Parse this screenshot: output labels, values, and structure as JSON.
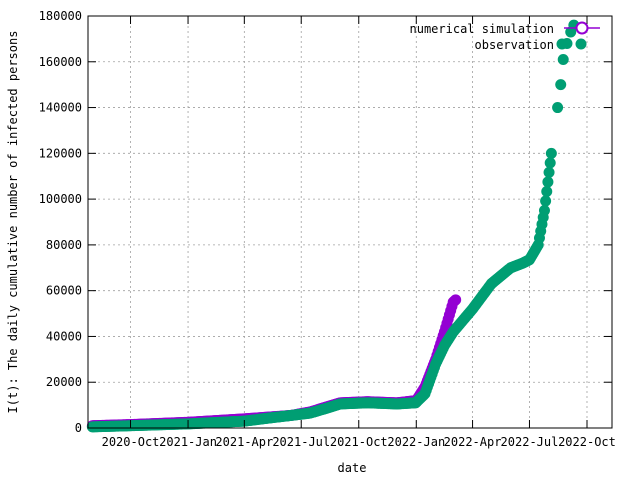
{
  "chart_data": {
    "type": "scatter",
    "title": "",
    "xlabel": "date",
    "ylabel": "I(t): The daily cumulative number of infected persons",
    "xlim": [
      "2020-07-25",
      "2022-11-10"
    ],
    "ylim": [
      0,
      180000
    ],
    "x_ticks": [
      "2020-10-01",
      "2021-01-01",
      "2021-04-01",
      "2021-07-01",
      "2021-10-01",
      "2022-01-01",
      "2022-04-01",
      "2022-07-01",
      "2022-10-01"
    ],
    "x_tick_labels": [
      "2020-Oct",
      "2021-Jan",
      "2021-Apr",
      "2021-Jul",
      "2021-Oct",
      "2022-Jan",
      "2022-Apr",
      "2022-Jul",
      "2022-Oct"
    ],
    "y_ticks": [
      0,
      20000,
      40000,
      60000,
      80000,
      100000,
      120000,
      140000,
      160000,
      180000
    ],
    "y_tick_labels": [
      "0",
      "20000",
      "40000",
      "60000",
      "80000",
      "100000",
      "120000",
      "140000",
      "160000",
      "180000"
    ],
    "grid": true,
    "legend_position": "top-right",
    "series": [
      {
        "name": "numerical simulation",
        "color": "#9400d3",
        "marker": "open-circle-line",
        "points": [
          [
            "2020-08-01",
            1000
          ],
          [
            "2020-10-01",
            1500
          ],
          [
            "2021-01-01",
            2500
          ],
          [
            "2021-04-01",
            4000
          ],
          [
            "2021-06-15",
            5500
          ],
          [
            "2021-07-15",
            7000
          ],
          [
            "2021-09-01",
            11000
          ],
          [
            "2021-10-15",
            11500
          ],
          [
            "2021-12-01",
            11000
          ],
          [
            "2022-01-01",
            12000
          ],
          [
            "2022-01-15",
            18000
          ],
          [
            "2022-02-01",
            30000
          ],
          [
            "2022-02-15",
            42000
          ],
          [
            "2022-03-01",
            55000
          ],
          [
            "2022-03-05",
            56000
          ]
        ]
      },
      {
        "name": "observation",
        "color": "#009e73",
        "marker": "filled-circle",
        "points": [
          [
            "2020-08-01",
            500
          ],
          [
            "2020-10-01",
            1000
          ],
          [
            "2021-01-01",
            1800
          ],
          [
            "2021-04-01",
            3000
          ],
          [
            "2021-05-15",
            4500
          ],
          [
            "2021-06-15",
            5500
          ],
          [
            "2021-07-15",
            6500
          ],
          [
            "2021-08-15",
            9000
          ],
          [
            "2021-09-01",
            10500
          ],
          [
            "2021-10-15",
            11000
          ],
          [
            "2021-12-01",
            10500
          ],
          [
            "2021-12-31",
            11000
          ],
          [
            "2022-01-15",
            15000
          ],
          [
            "2022-02-01",
            28000
          ],
          [
            "2022-02-15",
            36000
          ],
          [
            "2022-03-01",
            42000
          ],
          [
            "2022-04-01",
            52000
          ],
          [
            "2022-05-01",
            63000
          ],
          [
            "2022-06-01",
            70000
          ],
          [
            "2022-06-20",
            72000
          ],
          [
            "2022-07-01",
            73500
          ],
          [
            "2022-07-15",
            80000
          ],
          [
            "2022-07-25",
            95000
          ],
          [
            "2022-08-05",
            120000
          ],
          [
            "2022-08-15",
            140000
          ],
          [
            "2022-08-20",
            150000
          ],
          [
            "2022-08-24",
            161000
          ],
          [
            "2022-08-30",
            168000
          ],
          [
            "2022-09-05",
            173000
          ],
          [
            "2022-09-10",
            176000
          ]
        ]
      }
    ]
  }
}
